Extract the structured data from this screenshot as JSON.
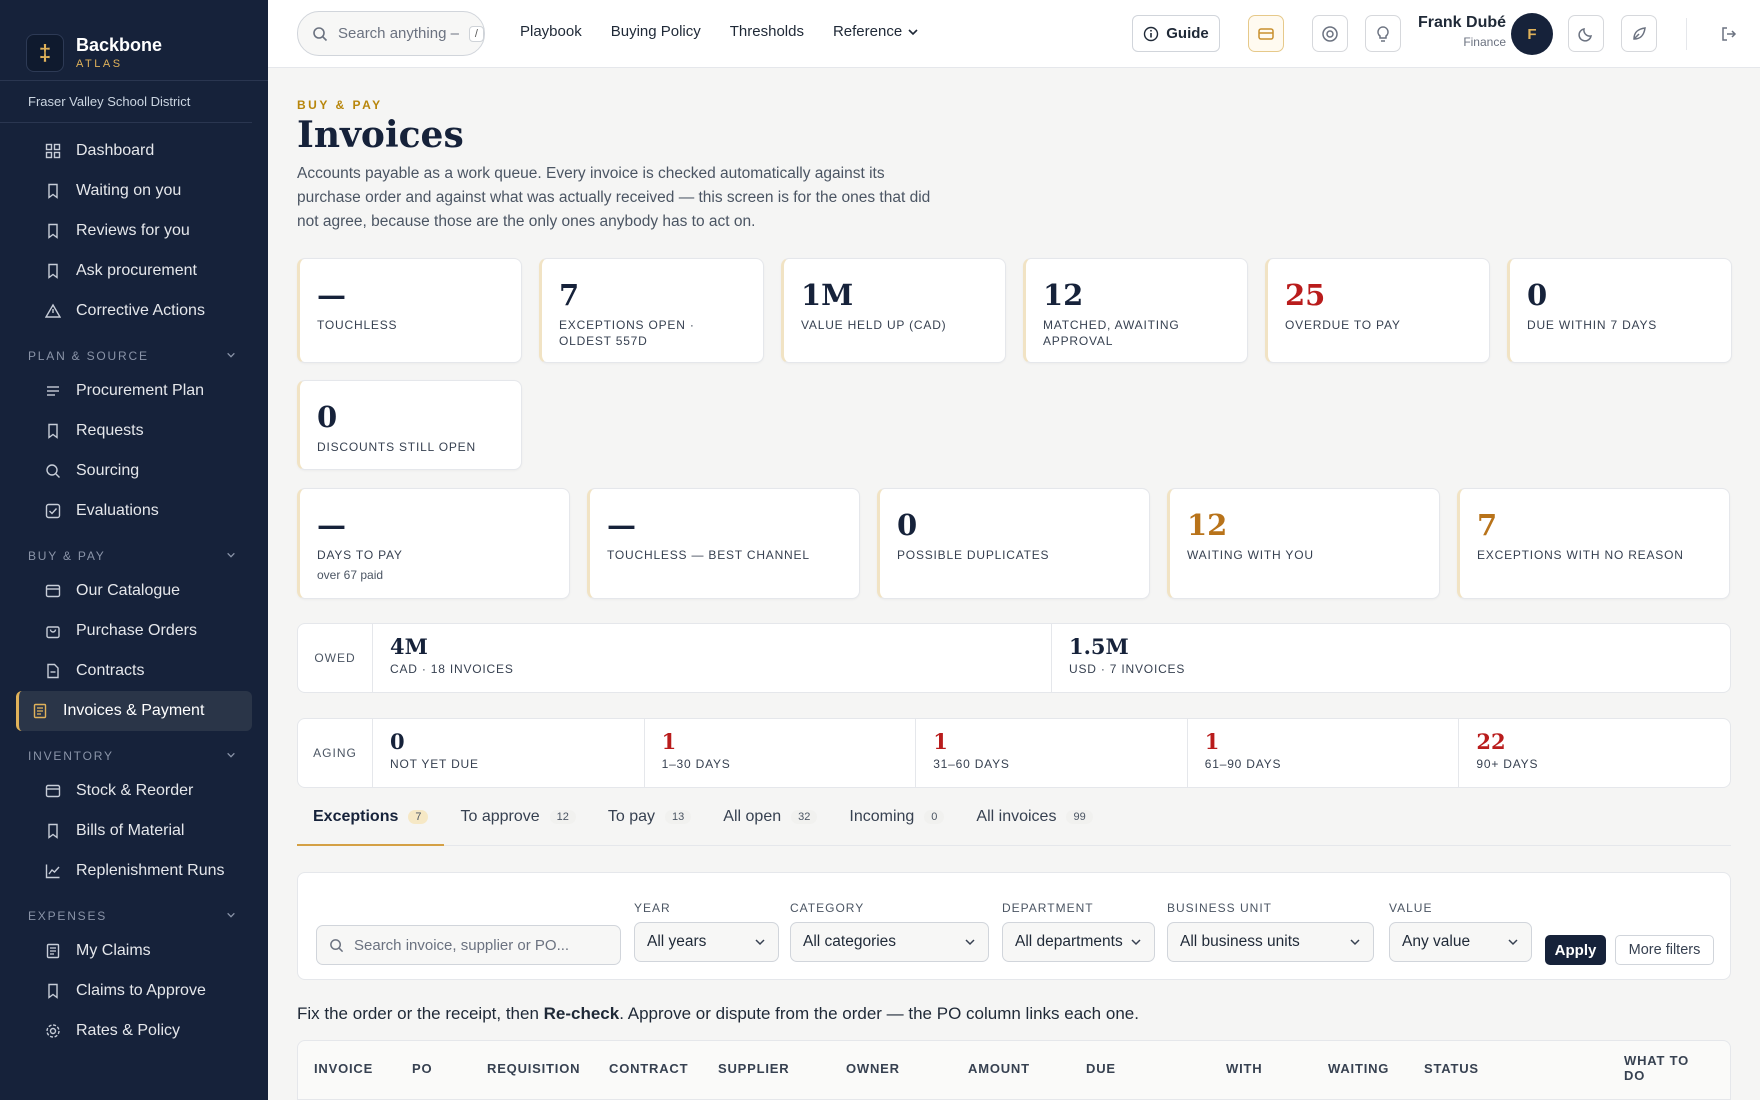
{
  "app": {
    "name": "Backbone",
    "sub": "ATLAS",
    "org": "Fraser Valley School District"
  },
  "sidebar": {
    "top": [
      {
        "label": "Dashboard",
        "icon": "grid"
      },
      {
        "label": "Waiting on you",
        "icon": "bookmark"
      },
      {
        "label": "Reviews for you",
        "icon": "bookmark"
      },
      {
        "label": "Ask procurement",
        "icon": "bookmark"
      },
      {
        "label": "Corrective Actions",
        "icon": "warning"
      }
    ],
    "sections": [
      {
        "title": "PLAN & SOURCE",
        "items": [
          {
            "label": "Procurement Plan",
            "icon": "list"
          },
          {
            "label": "Requests",
            "icon": "bookmark"
          },
          {
            "label": "Sourcing",
            "icon": "search"
          },
          {
            "label": "Evaluations",
            "icon": "check"
          }
        ]
      },
      {
        "title": "BUY & PAY",
        "items": [
          {
            "label": "Our Catalogue",
            "icon": "card"
          },
          {
            "label": "Purchase Orders",
            "icon": "bag"
          },
          {
            "label": "Contracts",
            "icon": "doc"
          },
          {
            "label": "Invoices & Payment",
            "icon": "receipt",
            "active": true
          }
        ]
      },
      {
        "title": "INVENTORY",
        "items": [
          {
            "label": "Stock & Reorder",
            "icon": "card"
          },
          {
            "label": "Bills of Material",
            "icon": "bookmark"
          },
          {
            "label": "Replenishment Runs",
            "icon": "chart"
          }
        ]
      },
      {
        "title": "EXPENSES",
        "items": [
          {
            "label": "My Claims",
            "icon": "receipt"
          },
          {
            "label": "Claims to Approve",
            "icon": "bookmark"
          },
          {
            "label": "Rates & Policy",
            "icon": "gear"
          }
        ]
      }
    ]
  },
  "topbar": {
    "search_placeholder": "Search anything –",
    "search_key": "/",
    "nav": [
      "Playbook",
      "Buying Policy",
      "Thresholds",
      "Reference"
    ],
    "guide": "Guide",
    "user_name": "Frank Dubé",
    "user_role": "Finance",
    "avatar": "F"
  },
  "page": {
    "eyebrow": "BUY & PAY",
    "title": "Invoices",
    "description": "Accounts payable as a work queue. Every invoice is checked automatically against its purchase order and against what was actually received — this screen is for the ones that did not agree, because those are the only ones anybody has to act on."
  },
  "kpis_row1": [
    {
      "value": "—",
      "label": "TOUCHLESS"
    },
    {
      "value": "7",
      "label": "EXCEPTIONS OPEN · OLDEST 557D"
    },
    {
      "value": "1M",
      "label": "VALUE HELD UP (CAD)"
    },
    {
      "value": "12",
      "label": "MATCHED, AWAITING APPROVAL"
    },
    {
      "value": "25",
      "label": "OVERDUE TO PAY",
      "tone": "red"
    },
    {
      "value": "0",
      "label": "DUE WITHIN 7 DAYS"
    },
    {
      "value": "0",
      "label": "DISCOUNTS STILL OPEN"
    }
  ],
  "kpis_row2": [
    {
      "value": "—",
      "label": "DAYS TO PAY",
      "sub": "over 67 paid"
    },
    {
      "value": "—",
      "label": "TOUCHLESS — BEST CHANNEL"
    },
    {
      "value": "0",
      "label": "POSSIBLE DUPLICATES"
    },
    {
      "value": "12",
      "label": "WAITING WITH YOU",
      "tone": "amber"
    },
    {
      "value": "7",
      "label": "EXCEPTIONS WITH NO REASON",
      "tone": "amber"
    }
  ],
  "owed": {
    "label": "OWED",
    "cells": [
      {
        "value": "4M",
        "label": "CAD · 18 INVOICES"
      },
      {
        "value": "1.5M",
        "label": "USD · 7 INVOICES"
      }
    ]
  },
  "aging": {
    "label": "AGING",
    "cells": [
      {
        "value": "0",
        "label": "NOT YET DUE"
      },
      {
        "value": "1",
        "label": "1–30 DAYS",
        "tone": "red"
      },
      {
        "value": "1",
        "label": "31–60 DAYS",
        "tone": "red"
      },
      {
        "value": "1",
        "label": "61–90 DAYS",
        "tone": "red"
      },
      {
        "value": "22",
        "label": "90+ DAYS",
        "tone": "red"
      }
    ]
  },
  "tabs": [
    {
      "label": "Exceptions",
      "count": "7",
      "active": true
    },
    {
      "label": "To approve",
      "count": "12"
    },
    {
      "label": "To pay",
      "count": "13"
    },
    {
      "label": "All open",
      "count": "32"
    },
    {
      "label": "Incoming",
      "count": "0"
    },
    {
      "label": "All invoices",
      "count": "99"
    }
  ],
  "filters": {
    "search_placeholder": "Search invoice, supplier or PO...",
    "year": {
      "label": "YEAR",
      "value": "All years"
    },
    "category": {
      "label": "CATEGORY",
      "value": "All categories"
    },
    "department": {
      "label": "DEPARTMENT",
      "value": "All departments"
    },
    "business_unit": {
      "label": "BUSINESS UNIT",
      "value": "All business units"
    },
    "value": {
      "label": "VALUE",
      "value": "Any value"
    },
    "apply": "Apply",
    "more": "More filters"
  },
  "hint": {
    "pre": "Fix the order or the receipt, then ",
    "bold": "Re-check",
    "post": ". Approve or dispute from the order — the PO column links each one."
  },
  "table": {
    "columns": [
      "INVOICE",
      "PO",
      "REQUISITION",
      "CONTRACT",
      "SUPPLIER",
      "OWNER",
      "AMOUNT",
      "DUE",
      "WITH",
      "WAITING",
      "STATUS",
      "WHAT TO DO"
    ]
  }
}
